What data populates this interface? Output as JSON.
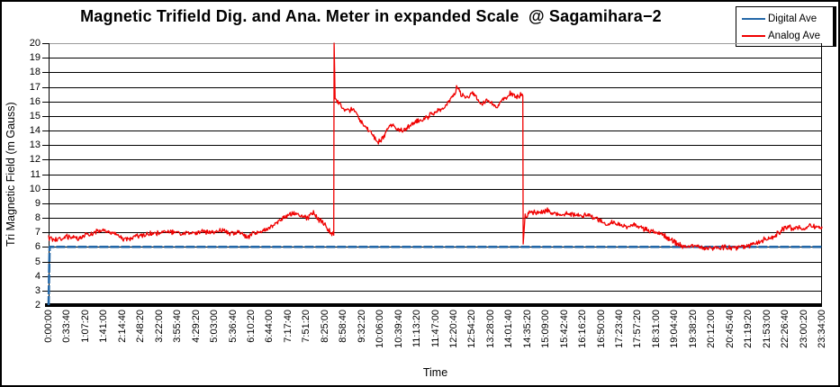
{
  "title": "Magnetic Trifield Dig. and Ana. Meter in expanded Scale  @ Sagamihara−2",
  "legend": {
    "items": [
      {
        "label": "Digital Ave",
        "color": "#2468A8"
      },
      {
        "label": "Analog Ave",
        "color": "#F00000"
      }
    ]
  },
  "chart_data": {
    "type": "line",
    "title": "Magnetic Trifield Dig. and Ana. Meter in expanded Scale  @ Sagamihara−2",
    "xlabel": "Time",
    "ylabel": "Tri Magnetic Field (m Gauss)",
    "ylim": [
      2,
      20
    ],
    "yticks": [
      2,
      3,
      4,
      5,
      6,
      7,
      8,
      9,
      10,
      11,
      12,
      13,
      14,
      15,
      16,
      17,
      18,
      19,
      20
    ],
    "xtick_labels": [
      "0:00:00",
      "0:33:40",
      "1:07:20",
      "1:41:00",
      "2:14:40",
      "2:48:20",
      "3:22:00",
      "3:55:40",
      "4:29:20",
      "5:03:00",
      "5:36:40",
      "6:10:20",
      "6:44:00",
      "7:17:40",
      "7:51:20",
      "8:25:00",
      "8:58:40",
      "9:32:20",
      "10:06:00",
      "10:39:40",
      "11:13:20",
      "11:47:00",
      "12:20:40",
      "12:54:20",
      "13:28:00",
      "14:01:40",
      "14:35:20",
      "15:09:00",
      "15:42:40",
      "16:16:20",
      "16:50:00",
      "17:23:40",
      "17:57:20",
      "18:31:00",
      "19:04:40",
      "19:38:20",
      "20:12:00",
      "20:45:40",
      "21:19:20",
      "21:53:00",
      "22:26:40",
      "23:00:20",
      "23:34:00"
    ],
    "xtick_interval": "0:33:40",
    "x_range_hours": [
      0,
      23.5667
    ],
    "grid": "horizontal",
    "legend_position": "top-right",
    "noise_amplitude": 0.2,
    "series": [
      {
        "name": "Digital Ave",
        "color": "#2468A8",
        "style": "thick-dashed",
        "points": [
          [
            0,
            2
          ],
          [
            0.03,
            6.0
          ],
          [
            23.57,
            6.0
          ]
        ]
      },
      {
        "name": "Analog Ave",
        "color": "#F00000",
        "style": "thin-noisy",
        "points": [
          [
            0,
            6.6
          ],
          [
            0.3,
            6.5
          ],
          [
            0.6,
            6.7
          ],
          [
            0.9,
            6.6
          ],
          [
            1.1,
            6.8
          ],
          [
            1.4,
            7.0
          ],
          [
            1.6,
            7.1
          ],
          [
            1.9,
            7.0
          ],
          [
            2.1,
            6.8
          ],
          [
            2.3,
            6.5
          ],
          [
            2.5,
            6.6
          ],
          [
            2.8,
            6.8
          ],
          [
            3.1,
            6.9
          ],
          [
            3.4,
            7.0
          ],
          [
            3.6,
            7.1
          ],
          [
            3.9,
            7.0
          ],
          [
            4.1,
            6.9
          ],
          [
            4.4,
            7.0
          ],
          [
            4.7,
            7.1
          ],
          [
            5.0,
            7.0
          ],
          [
            5.3,
            7.1
          ],
          [
            5.6,
            6.9
          ],
          [
            5.9,
            7.0
          ],
          [
            6.05,
            6.6
          ],
          [
            6.2,
            6.9
          ],
          [
            6.5,
            7.1
          ],
          [
            6.7,
            7.3
          ],
          [
            6.9,
            7.6
          ],
          [
            7.1,
            7.9
          ],
          [
            7.3,
            8.2
          ],
          [
            7.5,
            8.3
          ],
          [
            7.7,
            8.1
          ],
          [
            7.9,
            8.0
          ],
          [
            8.05,
            8.4
          ],
          [
            8.2,
            7.9
          ],
          [
            8.35,
            7.7
          ],
          [
            8.5,
            7.2
          ],
          [
            8.65,
            6.9
          ],
          [
            8.69,
            6.8
          ],
          [
            8.7,
            20.0
          ],
          [
            8.73,
            16.2
          ],
          [
            8.9,
            15.7
          ],
          [
            9.1,
            15.4
          ],
          [
            9.3,
            15.5
          ],
          [
            9.45,
            14.8
          ],
          [
            9.6,
            14.3
          ],
          [
            9.8,
            13.9
          ],
          [
            9.95,
            13.5
          ],
          [
            10.05,
            13.2
          ],
          [
            10.2,
            13.6
          ],
          [
            10.35,
            14.2
          ],
          [
            10.5,
            14.4
          ],
          [
            10.65,
            14.1
          ],
          [
            10.8,
            14.0
          ],
          [
            11.0,
            14.3
          ],
          [
            11.2,
            14.6
          ],
          [
            11.4,
            14.7
          ],
          [
            11.6,
            15.0
          ],
          [
            11.8,
            15.3
          ],
          [
            12.0,
            15.5
          ],
          [
            12.2,
            16.0
          ],
          [
            12.35,
            16.5
          ],
          [
            12.45,
            17.0
          ],
          [
            12.6,
            16.4
          ],
          [
            12.75,
            16.2
          ],
          [
            12.9,
            16.6
          ],
          [
            13.05,
            16.2
          ],
          [
            13.2,
            15.8
          ],
          [
            13.35,
            16.1
          ],
          [
            13.5,
            15.9
          ],
          [
            13.65,
            15.6
          ],
          [
            13.8,
            16.0
          ],
          [
            13.95,
            16.3
          ],
          [
            14.1,
            16.6
          ],
          [
            14.25,
            16.2
          ],
          [
            14.4,
            16.5
          ],
          [
            14.45,
            16.4
          ],
          [
            14.46,
            6.2
          ],
          [
            14.52,
            8.1
          ],
          [
            14.65,
            8.3
          ],
          [
            14.8,
            8.4
          ],
          [
            15.0,
            8.3
          ],
          [
            15.2,
            8.5
          ],
          [
            15.4,
            8.3
          ],
          [
            15.6,
            8.2
          ],
          [
            15.8,
            8.3
          ],
          [
            16.0,
            8.25
          ],
          [
            16.2,
            8.1
          ],
          [
            16.4,
            8.2
          ],
          [
            16.6,
            8.0
          ],
          [
            16.8,
            7.8
          ],
          [
            17.0,
            7.6
          ],
          [
            17.2,
            7.7
          ],
          [
            17.4,
            7.5
          ],
          [
            17.6,
            7.4
          ],
          [
            17.8,
            7.5
          ],
          [
            18.0,
            7.4
          ],
          [
            18.2,
            7.2
          ],
          [
            18.4,
            7.0
          ],
          [
            18.6,
            6.9
          ],
          [
            18.8,
            6.7
          ],
          [
            19.0,
            6.4
          ],
          [
            19.2,
            6.2
          ],
          [
            19.4,
            6.0
          ],
          [
            19.6,
            6.1
          ],
          [
            19.8,
            6.0
          ],
          [
            20.0,
            5.9
          ],
          [
            20.2,
            5.85
          ],
          [
            20.4,
            5.9
          ],
          [
            20.6,
            6.0
          ],
          [
            20.8,
            5.9
          ],
          [
            21.0,
            6.0
          ],
          [
            21.2,
            6.05
          ],
          [
            21.4,
            6.1
          ],
          [
            21.6,
            6.3
          ],
          [
            21.8,
            6.5
          ],
          [
            22.0,
            6.6
          ],
          [
            22.2,
            6.9
          ],
          [
            22.4,
            7.2
          ],
          [
            22.55,
            7.4
          ],
          [
            22.7,
            7.2
          ],
          [
            22.85,
            7.4
          ],
          [
            23.0,
            7.3
          ],
          [
            23.2,
            7.5
          ],
          [
            23.4,
            7.3
          ],
          [
            23.57,
            7.4
          ]
        ]
      }
    ]
  }
}
